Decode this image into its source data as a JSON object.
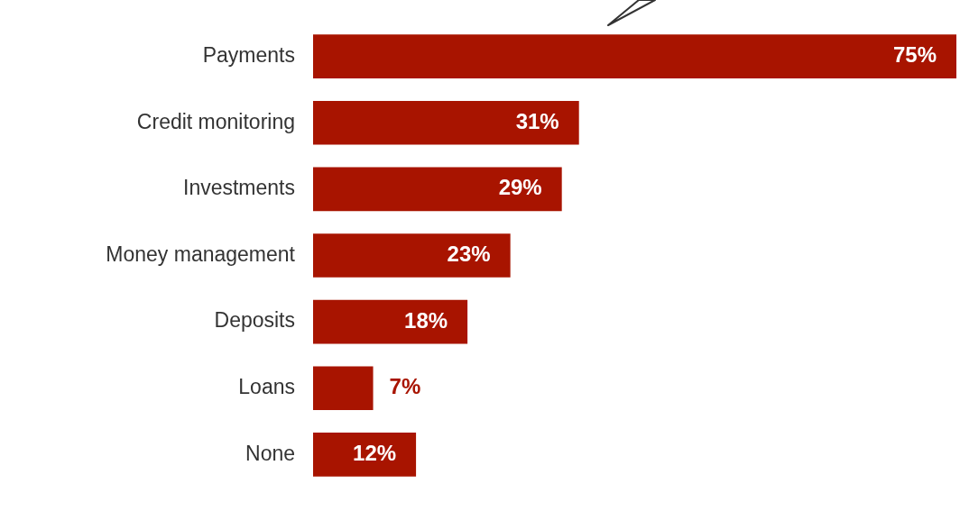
{
  "chart_data": {
    "type": "bar",
    "orientation": "horizontal",
    "categories": [
      "Payments",
      "Credit monitoring",
      "Investments",
      "Money management",
      "Deposits",
      "Loans",
      "None"
    ],
    "values": [
      75,
      31,
      29,
      23,
      18,
      7,
      12
    ],
    "value_labels": [
      "75%",
      "31%",
      "29%",
      "23%",
      "18%",
      "7%",
      "12%"
    ],
    "color": "#a81400"
  }
}
